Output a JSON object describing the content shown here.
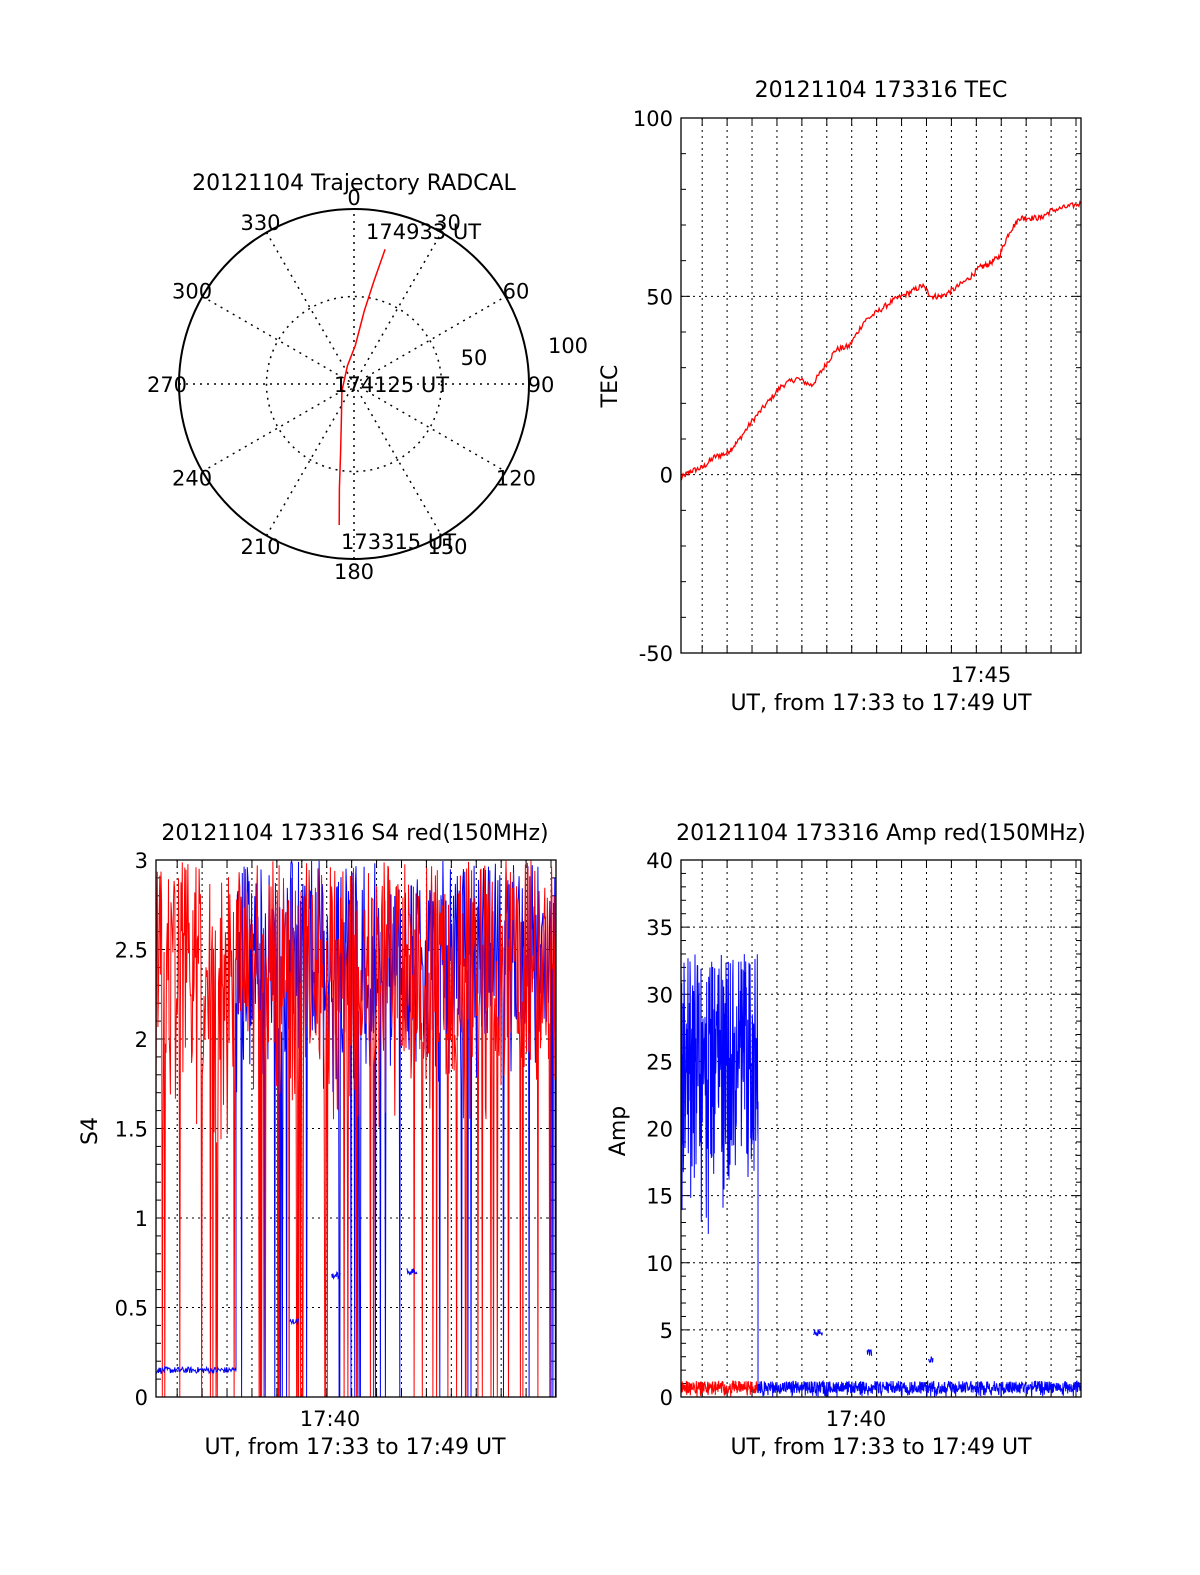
{
  "colors": {
    "red": "#ff0000",
    "blue": "#0000ff",
    "axis": "#000000",
    "grid": "#000000"
  },
  "chart_data": [
    {
      "id": "trajectory",
      "type": "scatter",
      "subtype": "polar",
      "title": "20121104 Trajectory RADCAL",
      "angle_labels": [
        "0",
        "30",
        "60",
        "90",
        "120",
        "150",
        "180",
        "210",
        "240",
        "270",
        "300",
        "330"
      ],
      "radius_labels": [
        "50",
        "100"
      ],
      "point_labels": [
        "174933 UT",
        "174125 UT",
        "173315 UT"
      ],
      "series": [
        {
          "color": "red",
          "points": [
            {
              "az": 13,
              "zen": 79
            },
            {
              "az": 11,
              "zen": 60
            },
            {
              "az": 8,
              "zen": 42
            },
            {
              "az": 2,
              "zen": 22
            },
            {
              "az": 340,
              "zen": 11
            },
            {
              "az": 240,
              "zen": 8
            },
            {
              "az": 200,
              "zen": 21
            },
            {
              "az": 191,
              "zen": 40
            },
            {
              "az": 188,
              "zen": 60
            },
            {
              "az": 186,
              "zen": 81
            }
          ]
        }
      ]
    },
    {
      "id": "tec",
      "type": "line",
      "title": "20121104 173316 TEC",
      "xlabel": "UT, from 17:33 to 17:49 UT",
      "ylabel": "TEC",
      "xlim": [
        17.5525,
        17.82
      ],
      "ylim": [
        -50,
        100
      ],
      "yticks": [
        "-50",
        "0",
        "50",
        "100"
      ],
      "xtick_labels": [
        {
          "value": 17.75,
          "label": "17:45"
        }
      ],
      "series": [
        {
          "color": "red",
          "x": [
            17.5525,
            17.559,
            17.567,
            17.575,
            17.583,
            17.59,
            17.6,
            17.61,
            17.62,
            17.63,
            17.64,
            17.648,
            17.656,
            17.665,
            17.675,
            17.685,
            17.695,
            17.705,
            17.714,
            17.72,
            17.727,
            17.735,
            17.745,
            17.752,
            17.758,
            17.765,
            17.772,
            17.779,
            17.785,
            17.793,
            17.8,
            17.81,
            17.82
          ],
          "y": [
            -1,
            1,
            2,
            5,
            6,
            9,
            15,
            20,
            25,
            27,
            25,
            30,
            35,
            36,
            43,
            46,
            49,
            51,
            53,
            50,
            50,
            52,
            55,
            58,
            59,
            61,
            68,
            72,
            72,
            72,
            74,
            75,
            76
          ]
        }
      ]
    },
    {
      "id": "s4",
      "type": "line",
      "title": "20121104 173316 S4 red(150MHz)",
      "xlabel": "UT, from 17:33 to 17:49 UT",
      "ylabel": "S4",
      "xlim": [
        17.5525,
        17.82
      ],
      "ylim": [
        0,
        3
      ],
      "yticks": [
        "0",
        "0.5",
        "1",
        "1.5",
        "2",
        "2.5",
        "3"
      ],
      "xtick_labels": [
        {
          "value": 17.6667,
          "label": "17:40"
        }
      ],
      "series": [
        {
          "color": "red",
          "note_hidden": true
        },
        {
          "color": "blue",
          "note_hidden": true
        }
      ],
      "segments": [
        {
          "color": "red",
          "x": [
            17.5525,
            17.606
          ],
          "y_band": [
            1.4,
            3.0
          ]
        },
        {
          "color": "blue",
          "x": [
            17.5525,
            17.606
          ],
          "y": 0.15
        },
        {
          "color": "blue",
          "x": [
            17.606,
            17.82
          ],
          "y_band": [
            1.7,
            3.0
          ]
        },
        {
          "color": "red",
          "x": [
            17.606,
            17.82
          ],
          "y_band": [
            1.5,
            3.0
          ]
        },
        {
          "color": "blue",
          "x": [
            17.642,
            17.648
          ],
          "y": 0.42
        },
        {
          "color": "blue",
          "x": [
            17.67,
            17.676
          ],
          "y": 0.68
        },
        {
          "color": "blue",
          "x": [
            17.72,
            17.727
          ],
          "y": 0.7
        }
      ]
    },
    {
      "id": "amp",
      "type": "line",
      "title": "20121104 173316 Amp red(150MHz)",
      "xlabel": "UT, from 17:33 to 17:49 UT",
      "ylabel": "Amp",
      "xlim": [
        17.5525,
        17.82
      ],
      "ylim": [
        0,
        40
      ],
      "yticks": [
        "0",
        "5",
        "10",
        "15",
        "20",
        "25",
        "30",
        "35",
        "40"
      ],
      "xtick_labels": [
        {
          "value": 17.6667,
          "label": "17:40"
        }
      ],
      "segments": [
        {
          "color": "blue",
          "x": [
            17.5525,
            17.604
          ],
          "y_band": [
            12,
            33
          ]
        },
        {
          "color": "red",
          "x": [
            17.5525,
            17.604
          ],
          "y_band": [
            0,
            1.2
          ]
        },
        {
          "color": "blue",
          "x": [
            17.604,
            17.82
          ],
          "y_band": [
            0,
            1.2
          ]
        },
        {
          "color": "blue",
          "x": [
            17.641,
            17.647
          ],
          "y": 4.8
        },
        {
          "color": "blue",
          "x": [
            17.677,
            17.68
          ],
          "y": 3.3
        },
        {
          "color": "blue",
          "x": [
            17.718,
            17.721
          ],
          "y": 2.8
        }
      ]
    }
  ]
}
